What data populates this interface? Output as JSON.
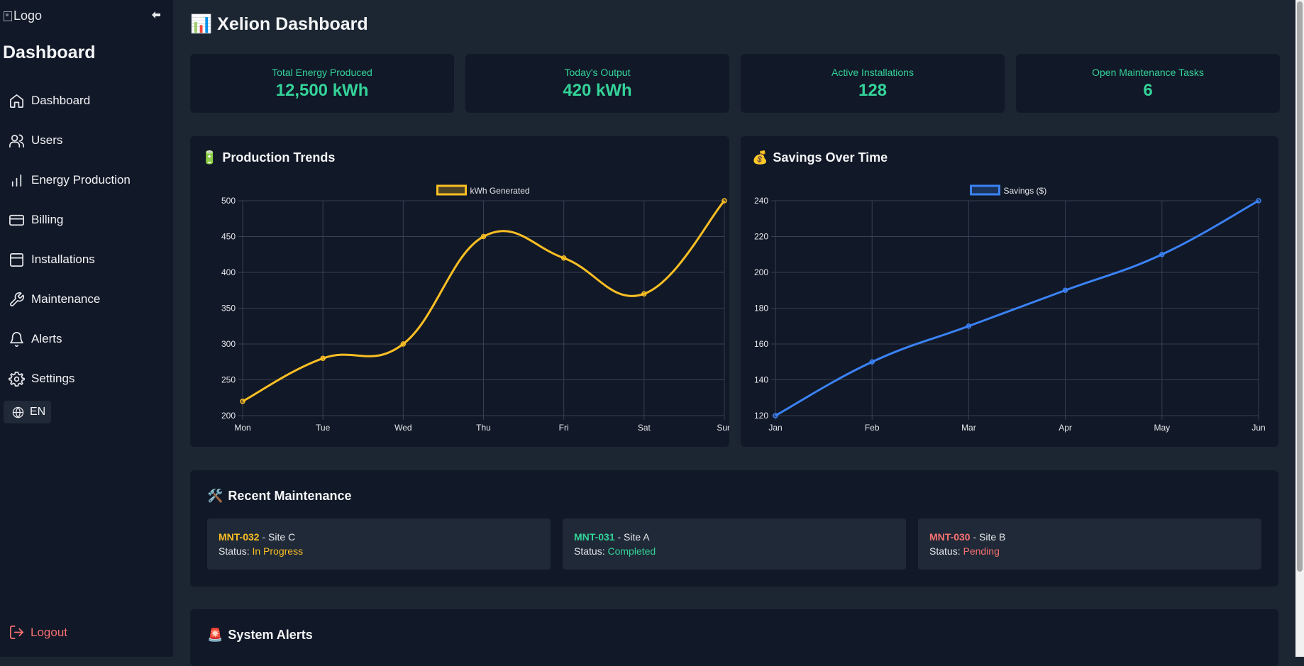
{
  "sidebar": {
    "logo_alt": "Logo",
    "title": "Dashboard",
    "items": [
      {
        "label": "Dashboard"
      },
      {
        "label": "Users"
      },
      {
        "label": "Energy Production"
      },
      {
        "label": "Billing"
      },
      {
        "label": "Installations"
      },
      {
        "label": "Maintenance"
      },
      {
        "label": "Alerts"
      },
      {
        "label": "Settings"
      }
    ],
    "language": "EN",
    "logout": "Logout"
  },
  "header": {
    "emoji": "📊",
    "title": "Xelion Dashboard"
  },
  "stats": [
    {
      "label": "Total Energy Produced",
      "value": "12,500 kWh"
    },
    {
      "label": "Today's Output",
      "value": "420 kWh"
    },
    {
      "label": "Active Installations",
      "value": "128"
    },
    {
      "label": "Open Maintenance Tasks",
      "value": "6"
    }
  ],
  "production": {
    "emoji": "🔋",
    "title": "Production Trends"
  },
  "savings": {
    "emoji": "💰",
    "title": "Savings Over Time"
  },
  "chart_data": [
    {
      "type": "line",
      "title": "Production Trends",
      "categories": [
        "Mon",
        "Tue",
        "Wed",
        "Thu",
        "Fri",
        "Sat",
        "Sun"
      ],
      "series": [
        {
          "name": "kWh Generated",
          "values": [
            220,
            280,
            300,
            450,
            420,
            370,
            500
          ],
          "color": "#fbbf24"
        }
      ],
      "ylim": [
        200,
        500
      ],
      "yticks": [
        200,
        250,
        300,
        350,
        400,
        450,
        500
      ],
      "grid": true,
      "legend": "top-center"
    },
    {
      "type": "line",
      "title": "Savings Over Time",
      "categories": [
        "Jan",
        "Feb",
        "Mar",
        "Apr",
        "May",
        "Jun"
      ],
      "series": [
        {
          "name": "Savings ($)",
          "values": [
            120,
            150,
            170,
            190,
            210,
            240
          ],
          "color": "#3b82f6"
        }
      ],
      "ylim": [
        120,
        240
      ],
      "yticks": [
        120,
        140,
        160,
        180,
        200,
        220,
        240
      ],
      "grid": true,
      "legend": "top-center"
    }
  ],
  "maintenance": {
    "emoji": "🛠️",
    "title": "Recent Maintenance",
    "status_label": "Status:",
    "items": [
      {
        "id": "MNT-032",
        "site": " - Site C",
        "status": "In Progress",
        "color": "#fbbf24"
      },
      {
        "id": "MNT-031",
        "site": " - Site A",
        "status": "Completed",
        "color": "#34d399"
      },
      {
        "id": "MNT-030",
        "site": " - Site B",
        "status": "Pending",
        "color": "#f87171"
      }
    ]
  },
  "alerts": {
    "emoji": "🚨",
    "title": "System Alerts"
  }
}
